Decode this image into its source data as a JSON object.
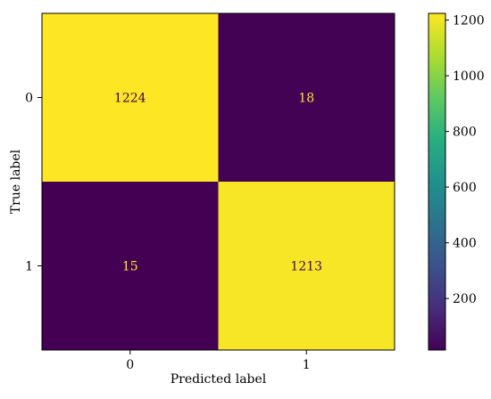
{
  "chart_data": {
    "type": "heatmap",
    "title": "",
    "xlabel": "Predicted label",
    "ylabel": "True label",
    "x_categories": [
      "0",
      "1"
    ],
    "y_categories": [
      "0",
      "1"
    ],
    "values": [
      [
        1224,
        18
      ],
      [
        15,
        1213
      ]
    ],
    "colormap": "viridis",
    "colorbar": {
      "range": [
        15,
        1224
      ],
      "ticks": [
        200,
        400,
        600,
        800,
        1000,
        1200
      ]
    },
    "grid": false,
    "colors": {
      "low": "#440154",
      "high": "#fde725",
      "text_on_low": "#fde725",
      "text_on_high": "#440154"
    }
  }
}
